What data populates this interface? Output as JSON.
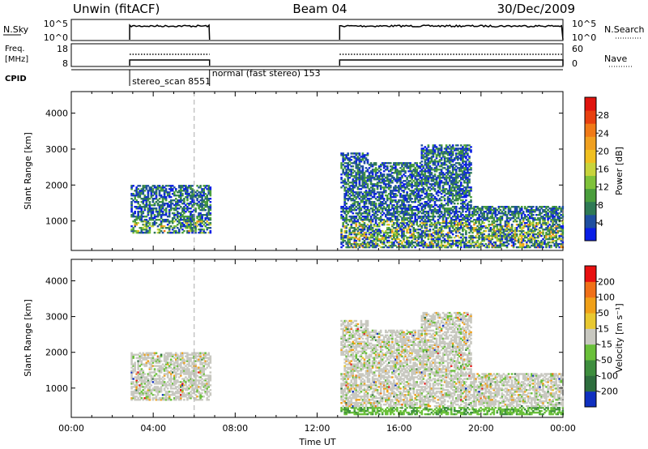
{
  "header": {
    "station": "Unwin (fitACF)",
    "beam": "Beam 04",
    "date": "30/Dec/2009"
  },
  "control_panels": {
    "nsky_label": "N.Sky",
    "nsky_ticks": [
      "10^5",
      "10^0"
    ],
    "nsearch_label": "N.Search",
    "nsearch_ticks": [
      "10^5",
      "10^0"
    ],
    "freq_label_line1": "Freq.",
    "freq_label_line2": "[MHz]",
    "freq_ticks": [
      "18",
      "8"
    ],
    "nave_label": "Nave",
    "nave_ticks": [
      "60",
      "0"
    ],
    "cpid_label": "CPID",
    "cpid_entries": [
      {
        "text": "stereo_scan 8551",
        "start_hour": 2.85
      },
      {
        "text": "normal (fast stereo) 153",
        "start_hour": 6.75
      }
    ],
    "on_intervals": [
      [
        2.85,
        6.75
      ],
      [
        13.1,
        24.0
      ]
    ]
  },
  "chart_data": [
    {
      "type": "heatmap",
      "name": "power-panel",
      "ylabel": "Slant Range [km]",
      "xlim": [
        0,
        24
      ],
      "ylim": [
        180,
        4600
      ],
      "y_ticks": [
        1000,
        2000,
        3000,
        4000
      ],
      "y_tick_labels": [
        "1000",
        "2000",
        "3000",
        "4000"
      ],
      "colorbar_label": "Power [dB]",
      "colorbar_ticks": [
        "4",
        "8",
        "12",
        "16",
        "20",
        "24",
        "28"
      ],
      "colorbar_colors": [
        "#0a1ee6",
        "#1f4fa0",
        "#2f7a55",
        "#4a9e3c",
        "#7fc23a",
        "#c8d43c",
        "#f0c020",
        "#f0a020",
        "#f07a18",
        "#e84010",
        "#e0140e"
      ],
      "marker_hour": 6.0
    },
    {
      "type": "heatmap",
      "name": "velocity-panel",
      "ylabel": "Slant Range [km]",
      "xlabel": "Time UT",
      "xlim": [
        0,
        24
      ],
      "ylim": [
        180,
        4600
      ],
      "x_ticks": [
        0,
        4,
        8,
        12,
        16,
        20,
        24
      ],
      "x_tick_labels": [
        "00:00",
        "04:00",
        "08:00",
        "12:00",
        "16:00",
        "20:00",
        "00:00"
      ],
      "y_ticks": [
        1000,
        2000,
        3000,
        4000
      ],
      "y_tick_labels": [
        "1000",
        "2000",
        "3000",
        "4000"
      ],
      "colorbar_label": "Velocity [m s⁻¹]",
      "colorbar_ticks": [
        "200",
        "100",
        "50",
        "15",
        "-15",
        "-50",
        "-100",
        "-200"
      ],
      "colorbar_colors": [
        "#1030c0",
        "#2e6e3e",
        "#3e8e3e",
        "#6ac03a",
        "#c8c8c0",
        "#e8c830",
        "#f0a018",
        "#f07018",
        "#e81010"
      ],
      "marker_hour": 6.0
    }
  ]
}
